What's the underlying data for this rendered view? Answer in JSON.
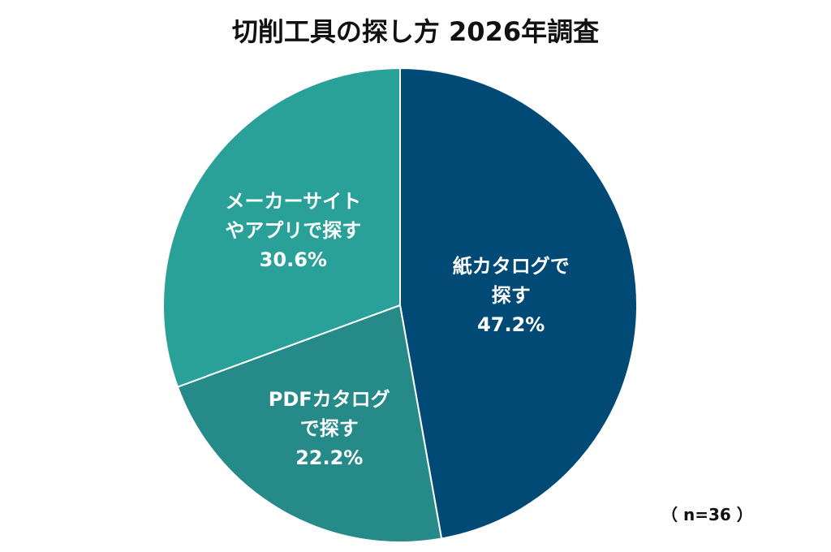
{
  "chart_data": {
    "type": "pie",
    "title": "切削工具の探し方 2026年調査",
    "categories": [
      "紙カタログで探す",
      "PDFカタログで探す",
      "メーカーサイトやアプリで探す"
    ],
    "values": [
      47.2,
      22.2,
      30.6
    ],
    "value_labels": [
      "47.2%",
      "22.2%",
      "30.6%"
    ],
    "colors": [
      "#004a75",
      "#268a88",
      "#2aa198"
    ],
    "annotation": "（ n=36 ）"
  }
}
